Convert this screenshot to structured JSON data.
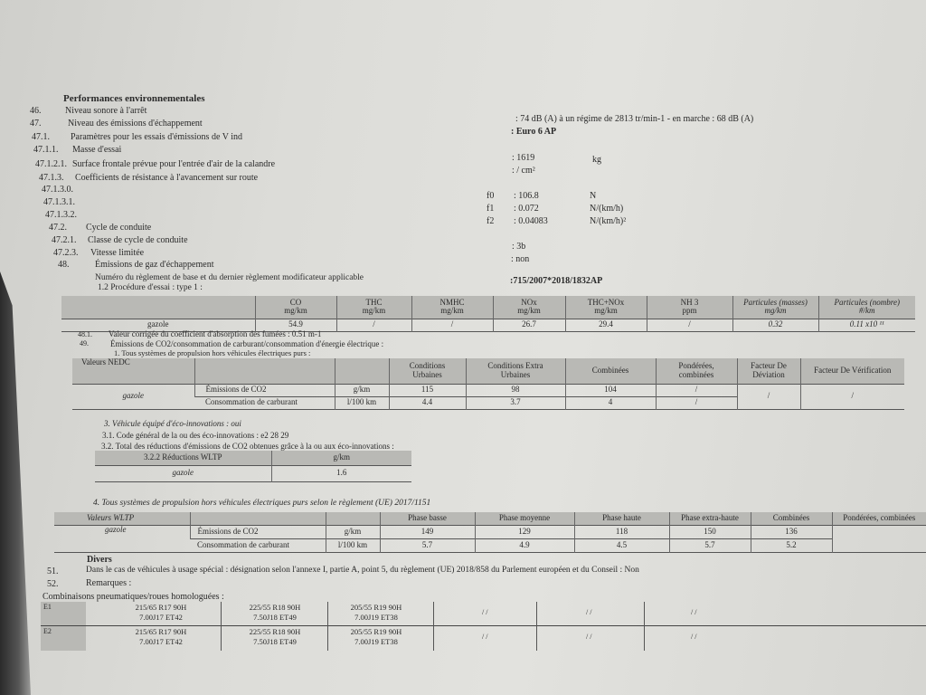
{
  "title": "Performances environnementales",
  "items": [
    {
      "num": "46.",
      "label": "Niveau sonore à l'arrêt"
    },
    {
      "num": "47.",
      "label": "Niveau des émissions d'échappement"
    },
    {
      "num": "47.1.",
      "label": "Paramètres pour les essais d'émissions de V ind"
    },
    {
      "num": "47.1.1.",
      "label": "Masse d'essai"
    },
    {
      "num": "47.1.2.1.",
      "label": "Surface frontale prévue pour l'entrée d'air de la calandre"
    },
    {
      "num": "47.1.3.",
      "label": "Coefficients de résistance à l'avancement sur route"
    },
    {
      "num": "47.1.3.0.",
      "label": ""
    },
    {
      "num": "47.1.3.1.",
      "label": ""
    },
    {
      "num": "47.1.3.2.",
      "label": ""
    },
    {
      "num": "47.2.",
      "label": "Cycle de conduite"
    },
    {
      "num": "47.2.1.",
      "label": "Classe de cycle de conduite"
    },
    {
      "num": "47.2.3.",
      "label": "Vitesse limitée"
    },
    {
      "num": "48.",
      "label": "Émissions de gaz d'échappement"
    }
  ],
  "reglement_label": "Numéro du règlement de base et du dernier règlement modificateur applicable",
  "procedure_label": "1.2 Procédure d'essai : type 1 :",
  "values": {
    "noise": ": 74 dB (A)   à un régime de 2813 tr/min-1 - en marche :  68 dB (A)",
    "euro": ": Euro 6 AP",
    "mass": ": 1619",
    "mass_unit": "kg",
    "surface": ": / cm²",
    "f0_label": "f0",
    "f0": ": 106.8",
    "f0_unit": "N",
    "f1_label": "f1",
    "f1": ": 0.072",
    "f1_unit": "N/(km/h)",
    "f2_label": "f2",
    "f2": ": 0.04083",
    "f2_unit": "N/(km/h)²",
    "cycle": ": 3b",
    "vitesse": ": non",
    "reglement": ":715/2007*2018/1832AP"
  },
  "type1_table": {
    "headers": [
      "",
      "CO\nmg/km",
      "THC\nmg/km",
      "NMHC\nmg/km",
      "NOx\nmg/km",
      "THC+NOx\nmg/km",
      "NH 3\nppm",
      "Particules (masses)\nmg/km",
      "Particules (nombre)\n#/km"
    ],
    "row": [
      "gazole",
      "54.9",
      "/",
      "/",
      "26.7",
      "29.4",
      "/",
      "0.32",
      "0.11 x10 ¹¹"
    ]
  },
  "line_48_1": {
    "num": "48.1.",
    "text": "Valeur corrigée du coefficient d'absorption des fumées : 0.51 m-1"
  },
  "line_49": {
    "num": "49.",
    "text": "Émissions de CO2/consommation de carburant/consommation d'énergie électrique :"
  },
  "line_1": "1. Tous systèmes de propulsion hors véhicules électriques purs :",
  "nedc_table": {
    "headers": [
      "Valeurs NEDC",
      "",
      "",
      "Conditions\nUrbaines",
      "Conditions Extra\nUrbaines",
      "Combinées",
      "Pondérées,\ncombinées",
      "Facteur De\nDéviation",
      "Facteur De Vérification"
    ],
    "fuel": "gazole",
    "rows": [
      [
        "Émissions de CO2",
        "g/km",
        "115",
        "98",
        "104",
        "/"
      ],
      [
        "Consommation de carburant",
        "l/100 km",
        "4.4",
        "3.7",
        "4",
        "/"
      ]
    ],
    "deviation": "/",
    "verification": "/"
  },
  "eco": {
    "line3": "3. Véhicule équipé d'éco-innovations : oui",
    "line31": "3.1. Code général de la ou des éco-innovations : e2 28 29",
    "line32": "3.2. Total des réductions d'émissions de CO2 obtenues grâce à la ou aux éco-innovations :",
    "headers": [
      "3.2.2 Réductions WLTP",
      "g/km"
    ],
    "row": [
      "gazole",
      "1.6"
    ]
  },
  "line_4": "4. Tous systèmes de propulsion hors véhicules électriques purs selon le règlement (UE) 2017/1151",
  "wltp_table": {
    "headers": [
      "Valeurs WLTP",
      "",
      "",
      "Phase basse",
      "Phase moyenne",
      "Phase haute",
      "Phase extra-haute",
      "Combinées",
      "Pondérées, combinées"
    ],
    "fuel": "gazole",
    "rows": [
      [
        "Émissions de CO2",
        "g/km",
        "149",
        "129",
        "118",
        "150",
        "136"
      ],
      [
        "Consommation de carburant",
        "l/100 km",
        "5.7",
        "4.9",
        "4.5",
        "5.7",
        "5.2"
      ]
    ]
  },
  "divers": {
    "title": "Divers",
    "l51_num": "51.",
    "l51": "Dans le cas de véhicules à usage spécial : désignation selon l'annexe I, partie A, point 5, du règlement (UE) 2018/858 du Parlement européen et du Conseil : Non",
    "l52_num": "52.",
    "l52": "Remarques :",
    "combinaisons": "Combinaisons pneumatiques/roues homologuées :"
  },
  "tyres": [
    {
      "axle": "E1",
      "sizes": [
        [
          "215/65 R17 90H",
          "7.00J17 ET42"
        ],
        [
          "225/55 R18 90H",
          "7.50J18 ET49"
        ],
        [
          "205/55 R19 90H",
          "7.00J19 ET38"
        ]
      ],
      "empty": [
        "/ /",
        "/ /",
        "/ /"
      ]
    },
    {
      "axle": "E2",
      "sizes": [
        [
          "215/65 R17 90H",
          "7.00J17 ET42"
        ],
        [
          "225/55 R18 90H",
          "7.50J18 ET49"
        ],
        [
          "205/55 R19 90H",
          "7.00J19 ET38"
        ]
      ],
      "empty": [
        "/ /",
        "/ /",
        "/ /"
      ]
    }
  ]
}
